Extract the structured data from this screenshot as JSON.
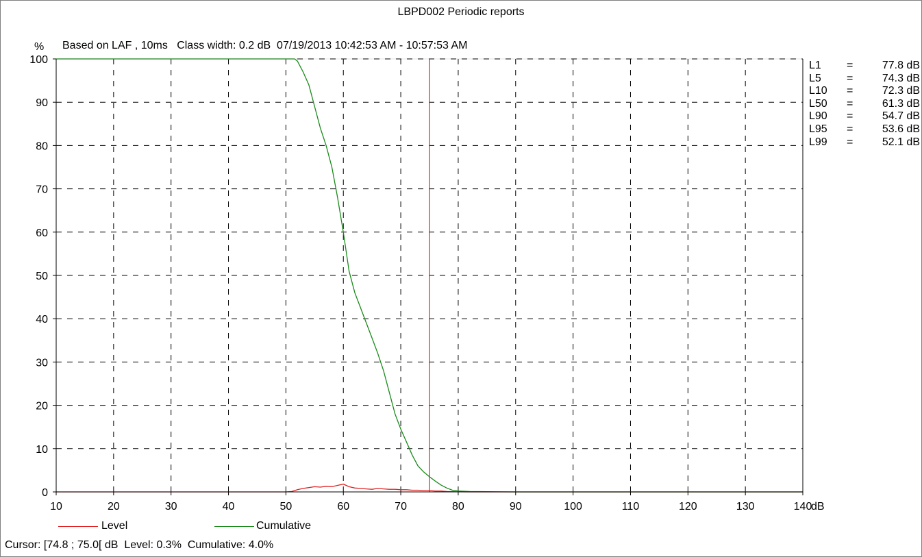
{
  "title": "LBPD002 Periodic reports",
  "subtitle": "Based on LAF , 10ms   Class width: 0.2 dB  07/19/2013 10:42:53 AM - 10:57:53 AM",
  "cursor_text": "Cursor: [74.8 ; 75.0[ dB  Level: 0.3%  Cumulative: 4.0%",
  "colors": {
    "level": "#e02020",
    "cumulative": "#1a8a1a",
    "cursor": "#e02020",
    "grid": "#000000"
  },
  "stats": [
    {
      "name": "L1",
      "value": "77.8 dB"
    },
    {
      "name": "L5",
      "value": "74.3 dB"
    },
    {
      "name": "L10",
      "value": "72.3 dB"
    },
    {
      "name": "L50",
      "value": "61.3 dB"
    },
    {
      "name": "L90",
      "value": "54.7 dB"
    },
    {
      "name": "L95",
      "value": "53.6 dB"
    },
    {
      "name": "L99",
      "value": "52.1 dB"
    }
  ],
  "chart_data": {
    "type": "line",
    "title": "LBPD002 Periodic reports",
    "xlabel": "dB",
    "ylabel": "%",
    "xlim": [
      10,
      140
    ],
    "ylim": [
      0,
      100
    ],
    "x_ticks": [
      10,
      20,
      30,
      40,
      50,
      60,
      70,
      80,
      90,
      100,
      110,
      120,
      130,
      140
    ],
    "y_ticks": [
      0,
      10,
      20,
      30,
      40,
      50,
      60,
      70,
      80,
      90,
      100
    ],
    "grid": true,
    "legend_position": "bottom",
    "cursor_x": 75.0,
    "series": [
      {
        "name": "Level",
        "color": "#e02020",
        "points": [
          [
            10,
            0
          ],
          [
            50,
            0
          ],
          [
            51,
            0.1
          ],
          [
            52,
            0.5
          ],
          [
            53,
            0.8
          ],
          [
            54,
            1.0
          ],
          [
            55,
            1.2
          ],
          [
            56,
            1.1
          ],
          [
            57,
            1.3
          ],
          [
            58,
            1.2
          ],
          [
            59,
            1.5
          ],
          [
            60,
            1.8
          ],
          [
            61,
            1.2
          ],
          [
            62,
            0.9
          ],
          [
            63,
            0.8
          ],
          [
            64,
            0.7
          ],
          [
            65,
            0.6
          ],
          [
            66,
            0.8
          ],
          [
            67,
            0.7
          ],
          [
            68,
            0.6
          ],
          [
            69,
            0.6
          ],
          [
            70,
            0.5
          ],
          [
            71,
            0.5
          ],
          [
            72,
            0.4
          ],
          [
            73,
            0.4
          ],
          [
            74,
            0.3
          ],
          [
            75,
            0.3
          ],
          [
            76,
            0.2
          ],
          [
            77,
            0.2
          ],
          [
            78,
            0.1
          ],
          [
            79,
            0.05
          ],
          [
            80,
            0.02
          ],
          [
            82,
            0
          ],
          [
            140,
            0
          ]
        ]
      },
      {
        "name": "Cumulative",
        "color": "#1a8a1a",
        "points": [
          [
            10,
            100
          ],
          [
            51.5,
            100
          ],
          [
            52,
            99.5
          ],
          [
            53,
            97
          ],
          [
            54,
            94
          ],
          [
            55,
            89
          ],
          [
            56,
            84
          ],
          [
            57,
            80
          ],
          [
            58,
            75
          ],
          [
            59,
            68
          ],
          [
            60,
            60
          ],
          [
            61,
            51
          ],
          [
            62,
            46
          ],
          [
            63,
            42.5
          ],
          [
            64,
            39
          ],
          [
            65,
            35.5
          ],
          [
            66,
            32
          ],
          [
            67,
            28
          ],
          [
            68,
            23
          ],
          [
            69,
            18
          ],
          [
            70,
            14.5
          ],
          [
            71,
            11.5
          ],
          [
            72,
            8.5
          ],
          [
            73,
            6.0
          ],
          [
            74,
            4.6
          ],
          [
            75,
            3.5
          ],
          [
            76,
            2.5
          ],
          [
            77,
            1.6
          ],
          [
            78,
            0.9
          ],
          [
            79,
            0.4
          ],
          [
            80,
            0.2
          ],
          [
            82,
            0.1
          ],
          [
            85,
            0.05
          ],
          [
            90,
            0
          ],
          [
            140,
            0
          ]
        ]
      }
    ]
  }
}
